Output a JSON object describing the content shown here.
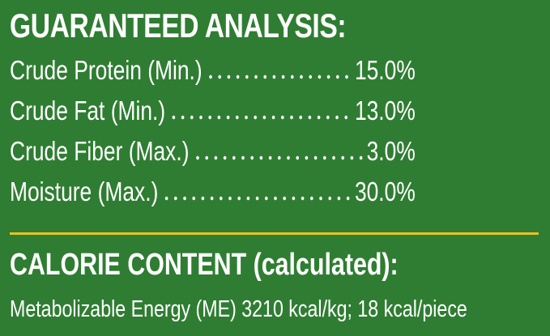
{
  "analysis": {
    "title": "GUARANTEED ANALYSIS:",
    "rows": [
      {
        "label": "Crude Protein (Min.)",
        "value": "15.0%"
      },
      {
        "label": "Crude Fat (Min.)",
        "value": "13.0%"
      },
      {
        "label": "Crude Fiber (Max.)",
        "value": "3.0%"
      },
      {
        "label": "Moisture (Max.)",
        "value": "30.0%"
      }
    ]
  },
  "calorie": {
    "title": "CALORIE CONTENT (calculated):",
    "text": "Metabolizable Energy (ME) 3210 kcal/kg; 18 kcal/piece"
  }
}
